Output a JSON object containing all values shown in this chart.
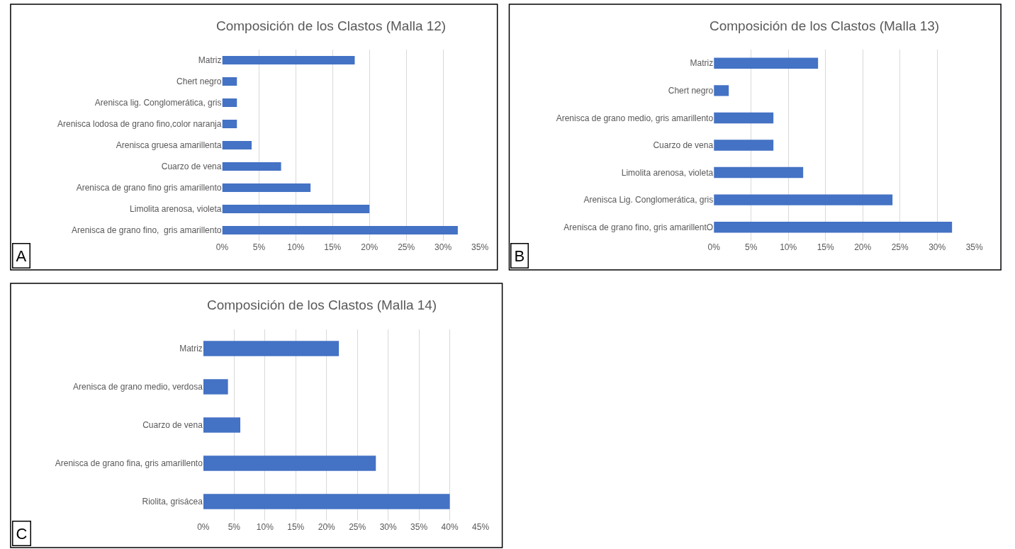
{
  "chart_data": [
    {
      "type": "bar",
      "orientation": "horizontal",
      "title": "Composición de los Clastos (Malla 12)",
      "annotations": [
        "A"
      ],
      "categories": [
        "Matriz",
        "Chert negro",
        "Arenisca lig. Conglomerática, gris",
        "Arenisca lodosa de grano fino,color naranja",
        "Arenisca gruesa amarillenta",
        "Cuarzo de vena",
        "Arenisca de grano fino gris amarillento",
        "Limolita arenosa, violeta",
        "Arenisca de grano fino,  gris amarillento"
      ],
      "values": [
        18,
        2,
        2,
        2,
        4,
        8,
        12,
        20,
        32
      ],
      "color": "#4472c4",
      "xlim": [
        0,
        35
      ],
      "xticks": [
        {
          "value": 0,
          "label": "0%"
        },
        {
          "value": 5,
          "label": "5%"
        },
        {
          "value": 10,
          "label": "10%"
        },
        {
          "value": 15,
          "label": "15%"
        },
        {
          "value": 20,
          "label": "20%"
        },
        {
          "value": 25,
          "label": "25%"
        },
        {
          "value": 30,
          "label": "30%"
        },
        {
          "value": 35,
          "label": "35%"
        }
      ],
      "grid": "x"
    },
    {
      "type": "bar",
      "orientation": "horizontal",
      "title": "Composición de los Clastos (Malla 13)",
      "annotations": [
        "B"
      ],
      "categories": [
        "Matriz",
        "Chert negro",
        "Arenisca de grano medio, gris amarillento",
        "Cuarzo de vena",
        "Limolita arenosa, violeta",
        "Arenisca Lig. Conglomerática, gris",
        "Arenisca de grano fino, gris amarillentO"
      ],
      "values": [
        14,
        2,
        8,
        8,
        12,
        24,
        32
      ],
      "color": "#4472c4",
      "xlim": [
        0,
        35
      ],
      "xticks": [
        {
          "value": 0,
          "label": "0%"
        },
        {
          "value": 5,
          "label": "5%"
        },
        {
          "value": 10,
          "label": "10%"
        },
        {
          "value": 15,
          "label": "15%"
        },
        {
          "value": 20,
          "label": "20%"
        },
        {
          "value": 25,
          "label": "25%"
        },
        {
          "value": 30,
          "label": "30%"
        },
        {
          "value": 35,
          "label": "35%"
        }
      ],
      "grid": "x"
    },
    {
      "type": "bar",
      "orientation": "horizontal",
      "title": "Composición de los Clastos (Malla 14)",
      "annotations": [
        "C"
      ],
      "categories": [
        "Matriz",
        "Arenisca de grano medio, verdosa",
        "Cuarzo de vena",
        "Arenisca de grano fina, gris amarillento",
        "Riolita, grisácea"
      ],
      "values": [
        22,
        4,
        6,
        28,
        40
      ],
      "color": "#4472c4",
      "xlim": [
        0,
        45
      ],
      "xticks": [
        {
          "value": 0,
          "label": "0%"
        },
        {
          "value": 5,
          "label": "5%"
        },
        {
          "value": 10,
          "label": "10%"
        },
        {
          "value": 15,
          "label": "15%"
        },
        {
          "value": 20,
          "label": "20%"
        },
        {
          "value": 25,
          "label": "25%"
        },
        {
          "value": 30,
          "label": "30%"
        },
        {
          "value": 35,
          "label": "35%"
        },
        {
          "value": 40,
          "label": "40%"
        },
        {
          "value": 45,
          "label": "45%"
        }
      ],
      "grid": "x"
    }
  ]
}
